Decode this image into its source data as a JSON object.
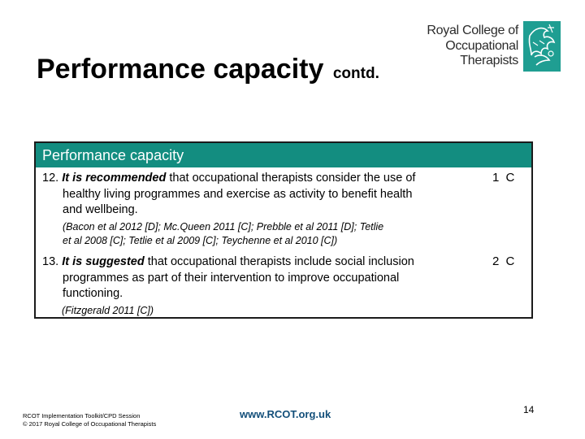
{
  "slide": {
    "title": "Performance capacity",
    "title_suffix": "contd."
  },
  "logo": {
    "line1": "Royal College of",
    "line2": "Occupational",
    "line3": "Therapists",
    "mark_icon": "rcot-emblem-icon"
  },
  "panel": {
    "header": "Performance capacity",
    "recommendations": [
      {
        "number": "12.",
        "lead": "It is recommended",
        "text_first": " that occupational therapists consider the use of",
        "text_rest": [
          "healthy living programmes and exercise as activity to benefit health",
          "and wellbeing."
        ],
        "references": [
          "(Bacon et al 2012 [D]; Mc.Queen 2011 [C]; Prebble et al 2011 [D]; Tetlie",
          "et al 2008 [C]; Tetlie et al 2009 [C]; Teychenne et al 2010 [C])"
        ],
        "grade": "1 C"
      },
      {
        "number": "13.",
        "lead": "It is suggested",
        "text_first": " that occupational therapists include social inclusion",
        "text_rest": [
          "programmes as part of their intervention to improve occupational",
          "functioning."
        ],
        "references": [
          "(Fitzgerald 2011 [C])"
        ],
        "grade": "2 C"
      }
    ]
  },
  "footer": {
    "line1": "RCOT Implementation Toolkit/CPD Session",
    "line2": "© 2017 Royal College of Occupational Therapists",
    "url": "www.RCOT.org.uk",
    "page_number": "14"
  },
  "colors": {
    "header_bg": "#138d80",
    "logo_teal": "#1f9e92",
    "url_color": "#134f7a"
  }
}
